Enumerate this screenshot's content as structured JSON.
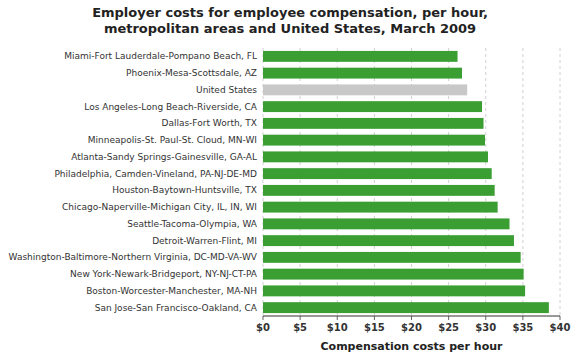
{
  "chart_data": {
    "type": "bar",
    "orientation": "horizontal",
    "title": "Employer costs for employee compensation, per hour,\nmetropolitan areas and United States, March 2009",
    "xlabel": "Compensation costs per hour",
    "categories": [
      "San Jose-San Francisco-Oakland, CA",
      "Boston-Worcester-Manchester, MA-NH",
      "New York-Newark-Bridgeport, NY-NJ-CT-PA",
      "Washington-Baltimore-Northern Virginia, DC-MD-VA-WV",
      "Detroit-Warren-Flint, MI",
      "Seattle-Tacoma-Olympia, WA",
      "Chicago-Naperville-Michigan City, IL, IN, WI",
      "Houston-Baytown-Huntsville, TX",
      "Philadelphia, Camden-Vineland, PA-NJ-DE-MD",
      "Atlanta-Sandy Springs-Gainesville, GA-AL",
      "Minneapolis-St. Paul-St. Cloud, MN-WI",
      "Dallas-Fort Worth, TX",
      "Los Angeles-Long Beach-Riverside, CA",
      "United States",
      "Phoenix-Mesa-Scottsdale, AZ",
      "Miami-Fort Lauderdale-Pompano Beach, FL"
    ],
    "values": [
      38.5,
      35.3,
      35.1,
      34.7,
      33.8,
      33.2,
      31.6,
      31.2,
      30.8,
      30.3,
      29.9,
      29.7,
      29.5,
      27.5,
      26.8,
      26.2
    ],
    "colors": [
      "#3a9e32",
      "#3a9e32",
      "#3a9e32",
      "#3a9e32",
      "#3a9e32",
      "#3a9e32",
      "#3a9e32",
      "#3a9e32",
      "#3a9e32",
      "#3a9e32",
      "#3a9e32",
      "#3a9e32",
      "#3a9e32",
      "#C8C8C8",
      "#3a9e32",
      "#3a9e32"
    ],
    "xlim": [
      0,
      40
    ],
    "xticks": [
      {
        "value": 0,
        "label": "$0"
      },
      {
        "value": 5,
        "label": "$5"
      },
      {
        "value": 10,
        "label": "$10"
      },
      {
        "value": 15,
        "label": "$15"
      },
      {
        "value": 20,
        "label": "$20"
      },
      {
        "value": 25,
        "label": "$25"
      },
      {
        "value": 30,
        "label": "$30"
      },
      {
        "value": 35,
        "label": "$35"
      },
      {
        "value": 40,
        "label": "$40"
      }
    ],
    "grid": true
  }
}
